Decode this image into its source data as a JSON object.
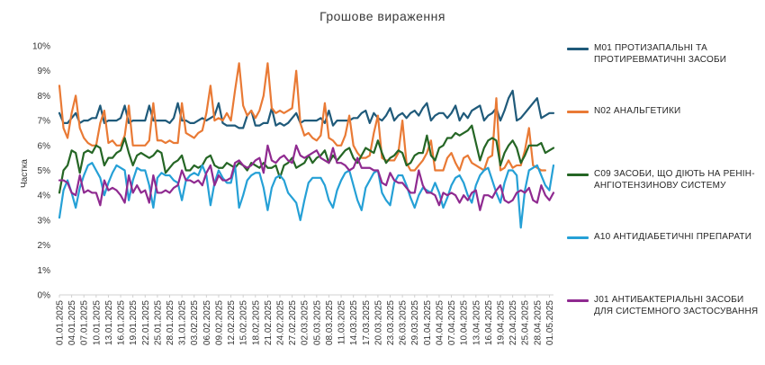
{
  "chart_data": {
    "type": "line",
    "title": "Грошове вираження",
    "xlabel": "",
    "ylabel": "Частка",
    "ylim": [
      0,
      10
    ],
    "yticks": [
      "0%",
      "1%",
      "2%",
      "3%",
      "4%",
      "5%",
      "6%",
      "7%",
      "8%",
      "9%",
      "10%"
    ],
    "grid": false,
    "legend_position": "right",
    "x_start": "01.01.2025",
    "x_end": "02.05.2025",
    "x_tick_labels": [
      "01.01.2025",
      "04.01.2025",
      "07.01.2025",
      "10.01.2025",
      "13.01.2025",
      "16.01.2025",
      "19.01.2025",
      "22.01.2025",
      "25.01.2025",
      "28.01.2025",
      "31.01.2025",
      "03.02.2025",
      "06.02.2025",
      "09.02.2025",
      "12.02.2025",
      "15.02.2025",
      "18.02.2025",
      "21.02.2025",
      "24.02.2025",
      "27.02.2025",
      "02.03.2025",
      "05.03.2025",
      "08.03.2025",
      "11.03.2025",
      "14.03.2025",
      "17.03.2025",
      "20.03.2025",
      "23.03.2025",
      "26.03.2025",
      "29.03.2025",
      "01.04.2025",
      "04.04.2025",
      "07.04.2025",
      "10.04.2025",
      "13.04.2025",
      "16.04.2025",
      "19.04.2025",
      "22.04.2025",
      "25.04.2025",
      "28.04.2025",
      "01.05.2025"
    ],
    "series": [
      {
        "name": "М01 ПРОТИЗАПАЛЬНІ ТА ПРОТИРЕВМАТИЧНІ ЗАСОБИ",
        "color": "#1f5a7a",
        "values": [
          7.3,
          6.9,
          6.9,
          7.1,
          7.3,
          6.9,
          7.0,
          7.0,
          7.1,
          7.1,
          7.6,
          6.9,
          7.0,
          7.0,
          7.0,
          7.1,
          7.6,
          6.9,
          7.0,
          7.0,
          7.0,
          7.0,
          7.6,
          7.0,
          7.0,
          7.0,
          7.0,
          6.9,
          7.1,
          7.7,
          7.0,
          7.0,
          6.9,
          6.9,
          7.0,
          7.1,
          7.0,
          7.1,
          7.2,
          7.7,
          6.9,
          6.8,
          6.8,
          6.8,
          6.7,
          6.7,
          7.2,
          7.4,
          6.8,
          6.8,
          6.9,
          6.9,
          7.5,
          6.8,
          6.9,
          6.8,
          6.9,
          7.1,
          7.3,
          6.9,
          7.0,
          7.0,
          7.0,
          7.0,
          7.1,
          6.9,
          7.4,
          6.8,
          7.0,
          7.0,
          7.0,
          7.0,
          7.1,
          7.1,
          7.3,
          7.4,
          6.9,
          7.3,
          7.1,
          7.0,
          7.2,
          7.5,
          7.0,
          7.2,
          7.3,
          7.1,
          7.3,
          7.4,
          7.2,
          7.5,
          7.7,
          7.0,
          7.2,
          7.3,
          7.3,
          7.1,
          7.3,
          7.6,
          7.0,
          7.3,
          7.1,
          7.4,
          7.5,
          7.6,
          7.0,
          7.2,
          7.3,
          7.5,
          7.0,
          7.4,
          7.9,
          8.2,
          7.0,
          7.1,
          7.3,
          7.5,
          7.7,
          7.9,
          7.1,
          7.2,
          7.3,
          7.3
        ]
      },
      {
        "name": "N02 АНАЛЬГЕТИКИ",
        "color": "#e97a35",
        "values": [
          8.4,
          6.7,
          6.3,
          7.3,
          8.0,
          6.7,
          6.3,
          6.1,
          6.0,
          6.0,
          6.9,
          7.4,
          6.1,
          6.2,
          6.0,
          6.0,
          6.4,
          7.6,
          6.0,
          6.0,
          6.0,
          6.0,
          6.2,
          7.7,
          6.2,
          6.2,
          6.1,
          6.2,
          6.1,
          6.1,
          7.7,
          6.5,
          6.4,
          6.3,
          6.5,
          6.6,
          7.3,
          8.4,
          7.0,
          7.1,
          7.0,
          7.3,
          7.0,
          8.2,
          9.3,
          7.6,
          7.2,
          7.4,
          7.1,
          7.4,
          8.0,
          9.3,
          7.5,
          7.3,
          7.4,
          7.3,
          7.4,
          7.5,
          9.0,
          6.9,
          6.4,
          6.5,
          6.3,
          6.2,
          6.4,
          7.7,
          6.3,
          6.2,
          6.0,
          6.0,
          6.4,
          7.2,
          6.0,
          5.7,
          5.5,
          5.5,
          5.6,
          6.5,
          7.2,
          5.5,
          5.4,
          5.4,
          5.4,
          5.7,
          7.0,
          5.3,
          5.0,
          5.0,
          5.2,
          5.4,
          5.7,
          6.2,
          5.0,
          5.0,
          5.0,
          5.5,
          5.7,
          5.3,
          5.0,
          5.5,
          5.6,
          5.3,
          5.2,
          5.1,
          5.0,
          5.5,
          5.6,
          7.9,
          5.0,
          5.1,
          5.4,
          5.1,
          5.2,
          5.2,
          5.8,
          6.7,
          5.2,
          5.1,
          5.0,
          5.0
        ]
      },
      {
        "name": "C09 ЗАСОБИ, ЩО ДІЮТЬ НА РЕНІН-АНГІОТЕНЗИНОВУ СИСТЕМУ",
        "color": "#256625",
        "values": [
          4.1,
          5.0,
          5.2,
          5.8,
          5.7,
          4.9,
          5.7,
          5.8,
          5.7,
          6.0,
          5.9,
          5.2,
          5.5,
          5.5,
          5.7,
          5.8,
          6.3,
          5.7,
          5.2,
          5.6,
          5.7,
          5.6,
          5.5,
          5.6,
          5.8,
          5.7,
          4.9,
          5.1,
          5.3,
          5.4,
          5.6,
          5.0,
          5.0,
          5.2,
          5.1,
          5.2,
          5.5,
          5.6,
          5.2,
          5.1,
          5.1,
          5.3,
          5.2,
          5.1,
          5.3,
          5.2,
          5.0,
          5.3,
          5.2,
          5.1,
          5.3,
          5.1,
          5.1,
          5.2,
          4.7,
          5.2,
          5.3,
          5.5,
          5.1,
          5.2,
          5.3,
          5.6,
          5.3,
          5.5,
          5.6,
          5.8,
          5.3,
          5.6,
          5.4,
          5.6,
          5.8,
          5.9,
          5.5,
          5.3,
          5.6,
          5.9,
          5.8,
          5.7,
          6.2,
          5.7,
          5.3,
          5.5,
          5.6,
          5.8,
          5.7,
          5.2,
          5.3,
          5.6,
          5.7,
          5.7,
          6.4,
          5.6,
          5.4,
          5.9,
          6.0,
          6.3,
          6.3,
          6.5,
          6.4,
          6.5,
          6.6,
          6.8,
          6.1,
          5.4,
          5.9,
          6.2,
          6.3,
          6.2,
          5.2,
          5.7,
          6.0,
          6.2,
          5.9,
          5.3,
          5.6,
          6.0,
          6.0,
          6.0,
          6.1,
          5.7,
          5.8,
          5.9
        ]
      },
      {
        "name": "A10 АНТИДІАБЕТИЧНІ ПРЕПАРАТИ",
        "color": "#25a0d6",
        "values": [
          3.1,
          4.2,
          4.6,
          4.1,
          3.5,
          4.3,
          4.8,
          5.2,
          5.3,
          5.0,
          4.7,
          4.0,
          4.5,
          4.9,
          5.2,
          5.1,
          5.0,
          3.8,
          4.6,
          5.1,
          5.0,
          5.0,
          4.4,
          3.5,
          4.7,
          4.9,
          4.8,
          4.8,
          4.6,
          4.5,
          3.8,
          4.6,
          4.8,
          4.9,
          4.8,
          5.2,
          4.8,
          3.6,
          4.5,
          5.0,
          4.7,
          4.5,
          4.5,
          5.2,
          3.5,
          4.0,
          4.6,
          4.8,
          4.9,
          4.9,
          4.3,
          3.4,
          4.3,
          4.7,
          4.8,
          4.6,
          4.1,
          3.9,
          3.7,
          3.0,
          3.8,
          4.5,
          4.7,
          4.7,
          4.7,
          4.4,
          3.8,
          3.5,
          4.2,
          4.6,
          4.9,
          5.0,
          4.4,
          3.8,
          3.4,
          4.3,
          4.6,
          4.9,
          5.0,
          4.1,
          3.8,
          3.6,
          4.5,
          4.8,
          4.8,
          4.4,
          3.9,
          3.5,
          4.0,
          4.3,
          4.2,
          4.1,
          4.5,
          4.1,
          3.5,
          3.9,
          4.4,
          4.7,
          4.8,
          4.5,
          4.0,
          3.7,
          4.4,
          4.8,
          5.0,
          5.1,
          4.6,
          4.1,
          3.7,
          4.5,
          5.0,
          5.0,
          4.8,
          2.7,
          4.2,
          5.0,
          5.1,
          5.2,
          4.8,
          4.4,
          4.2,
          5.2
        ]
      },
      {
        "name": "J01 АНТИБАКТЕРІАЛЬНІ ЗАСОБИ ДЛЯ СИСТЕМНОГО ЗАСТОСУВАННЯ",
        "color": "#8f2a90",
        "values": [
          4.6,
          4.6,
          4.5,
          4.1,
          4.0,
          4.8,
          4.1,
          4.2,
          4.1,
          4.1,
          3.6,
          4.6,
          4.2,
          4.3,
          4.2,
          4.0,
          3.7,
          4.8,
          4.1,
          4.4,
          4.1,
          4.2,
          3.7,
          4.8,
          4.1,
          4.1,
          4.2,
          4.1,
          4.3,
          4.4,
          5.0,
          4.6,
          4.6,
          4.5,
          4.6,
          4.4,
          4.9,
          5.2,
          4.4,
          4.8,
          4.6,
          4.6,
          4.7,
          5.3,
          5.4,
          5.2,
          5.1,
          5.2,
          5.4,
          5.5,
          4.9,
          6.0,
          5.4,
          5.3,
          5.5,
          5.6,
          5.4,
          5.3,
          6.0,
          5.6,
          5.5,
          5.6,
          5.7,
          5.8,
          5.5,
          5.4,
          5.3,
          5.9,
          5.3,
          5.3,
          5.2,
          5.0,
          5.1,
          5.5,
          5.1,
          5.1,
          5.1,
          5.0,
          5.0,
          4.5,
          4.4,
          4.9,
          4.6,
          4.5,
          4.5,
          4.3,
          4.1,
          4.1,
          5.0,
          4.4,
          4.1,
          4.1,
          4.0,
          3.6,
          4.1,
          4.0,
          4.1,
          4.0,
          3.7,
          4.0,
          3.8,
          4.1,
          4.2,
          3.4,
          4.0,
          4.0,
          3.9,
          4.2,
          4.4,
          3.8,
          3.7,
          3.8,
          4.1,
          4.2,
          4.1,
          4.3,
          3.8,
          3.7,
          4.4,
          4.0,
          3.8,
          4.1
        ]
      }
    ]
  }
}
